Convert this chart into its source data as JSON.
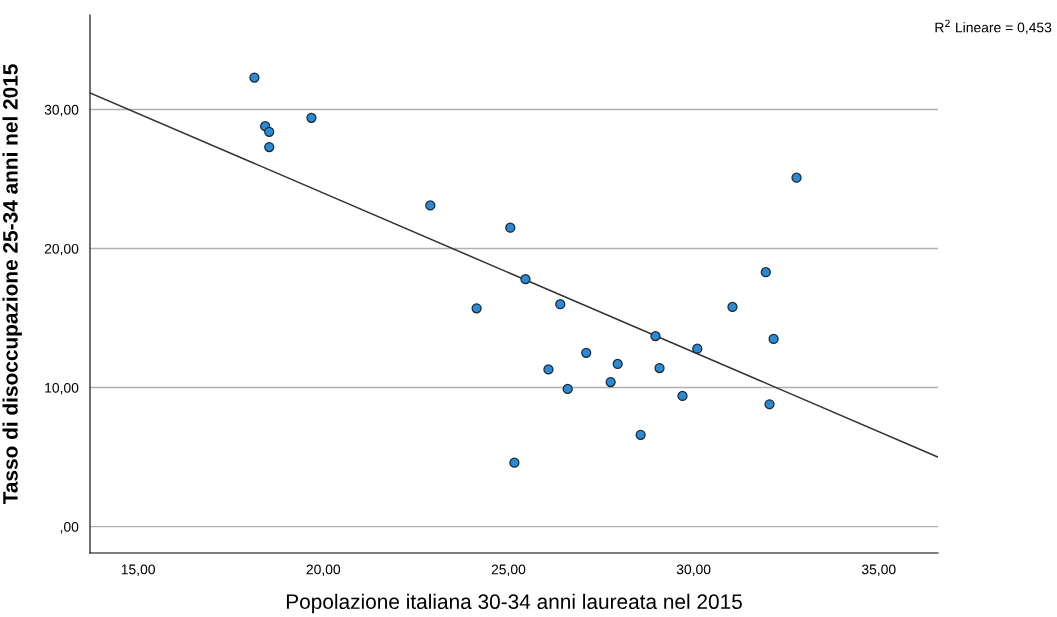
{
  "chart_data": {
    "type": "scatter",
    "xlabel": "Popolazione italiana 30-34 anni laureata nel 2015",
    "ylabel": "Tasso di disoccupazione 25-34 anni nel 2015",
    "annotations": [
      "R$^{2}$ Lineare = 0,453"
    ],
    "series": [
      {
        "color": "#2b8ad4",
        "marker": "circle",
        "x": [
          18.14,
          18.43,
          18.54,
          18.54,
          19.68,
          22.89,
          25.05,
          24.14,
          25.46,
          26.4,
          26.08,
          26.6,
          27.1,
          27.76,
          27.95,
          28.57,
          25.16,
          28.97,
          29.08,
          29.7,
          30.1,
          31.05,
          31.95,
          32.05,
          32.16,
          32.78
        ],
        "values": [
          32.3,
          28.8,
          28.4,
          27.3,
          29.4,
          23.1,
          21.5,
          15.7,
          17.8,
          16.0,
          11.3,
          9.9,
          12.5,
          10.4,
          11.7,
          6.6,
          4.6,
          13.7,
          11.4,
          9.4,
          12.8,
          15.8,
          18.3,
          8.8,
          13.5,
          25.1
        ]
      },
      {
        "type": "line",
        "color": "#333333",
        "marker": "none",
        "x": [
          13.7,
          36.6
        ],
        "values": [
          31.2,
          5.0
        ]
      }
    ],
    "xlim": [
      13.7,
      36.6
    ],
    "ylim": [
      -1.9,
      36.8
    ],
    "xticks": [
      {
        "value": 15,
        "label": "15,00"
      },
      {
        "value": 20,
        "label": "20,00"
      },
      {
        "value": 25,
        "label": "25,00"
      },
      {
        "value": 30,
        "label": "30,00"
      },
      {
        "value": 35,
        "label": "35,00"
      }
    ],
    "yticks": [
      {
        "value": 0,
        "label": ",00"
      },
      {
        "value": 10,
        "label": "10,00"
      },
      {
        "value": 20,
        "label": "20,00"
      },
      {
        "value": 30,
        "label": "30,00"
      }
    ],
    "grid": "y",
    "legend": false
  }
}
